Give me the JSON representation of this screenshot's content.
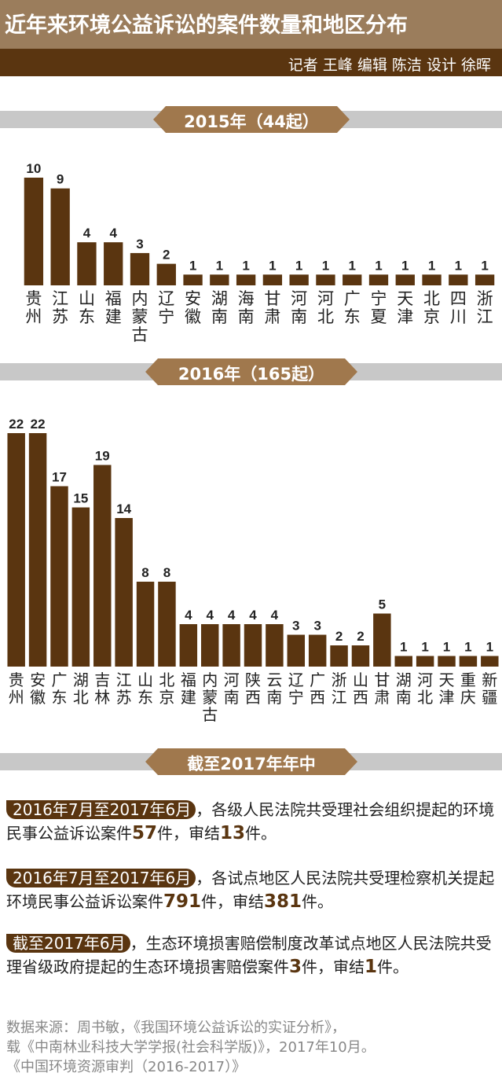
{
  "header": {
    "title": "近年来环境公益诉讼的案件数量和地区分布",
    "credits": "记者 王峰  编辑 陈洁  设计 徐晖"
  },
  "colors": {
    "bar": "#5a3510",
    "title_band": "#9b7d5c",
    "label_box": "#a0784d",
    "stripe": "#c8c8c8"
  },
  "chart_data": [
    {
      "type": "bar",
      "title": "2015年（44起）",
      "categories": [
        "贵州",
        "江苏",
        "山东",
        "福建",
        "内蒙古",
        "辽宁",
        "安徽",
        "湖南",
        "海南",
        "甘肃",
        "河南",
        "河北",
        "广东",
        "宁夏",
        "天津",
        "北京",
        "四川",
        "浙江"
      ],
      "values": [
        10,
        9,
        4,
        4,
        3,
        2,
        1,
        1,
        1,
        1,
        1,
        1,
        1,
        1,
        1,
        1,
        1,
        1
      ],
      "xlabel": "",
      "ylabel": "",
      "ylim": [
        0,
        10
      ]
    },
    {
      "type": "bar",
      "title": "2016年（165起）",
      "categories": [
        "贵州",
        "安徽",
        "广东",
        "湖北",
        "吉林",
        "江苏",
        "山东",
        "北京",
        "福建",
        "内蒙古",
        "河南",
        "陕西",
        "云南",
        "辽宁",
        "广西",
        "浙江",
        "山西",
        "甘肃",
        "湖南",
        "河北",
        "天津",
        "重庆",
        "新疆"
      ],
      "values": [
        22,
        22,
        17,
        15,
        19,
        14,
        8,
        8,
        4,
        4,
        4,
        4,
        4,
        3,
        3,
        2,
        2,
        5,
        1,
        1,
        1,
        1,
        1
      ],
      "xlabel": "",
      "ylabel": "",
      "ylim": [
        0,
        22
      ]
    }
  ],
  "section3": {
    "title": "截至2017年年中"
  },
  "notes": [
    {
      "period": "2016年7月至2017年6月",
      "text_a": "，各级人民法院共受理社会组织提起的环境民事公益诉讼案件",
      "num1": "57",
      "text_b": "件，审结",
      "num2": "13",
      "text_c": "件。"
    },
    {
      "period": "2016年7月至2017年6月",
      "text_a": "，各试点地区人民法院共受理检察机关提起环境民事公益诉讼案件",
      "num1": "791",
      "text_b": "件，审结",
      "num2": "381",
      "text_c": "件。"
    },
    {
      "period": "截至2017年6月",
      "text_a": "，生态环境损害赔偿制度改革试点地区人民法院共受理省级政府提起的生态环境损害赔偿案件",
      "num1": "3",
      "text_b": "件，审结",
      "num2": "1",
      "text_c": "件。"
    }
  ],
  "source": {
    "line1": "数据来源：周书敏，《我国环境公益诉讼的实证分析》，",
    "line2": "载《中南林业科技大学学报(社会科学版)》，2017年10月。",
    "line3": "《中国环境资源审判（2016-2017）》"
  }
}
